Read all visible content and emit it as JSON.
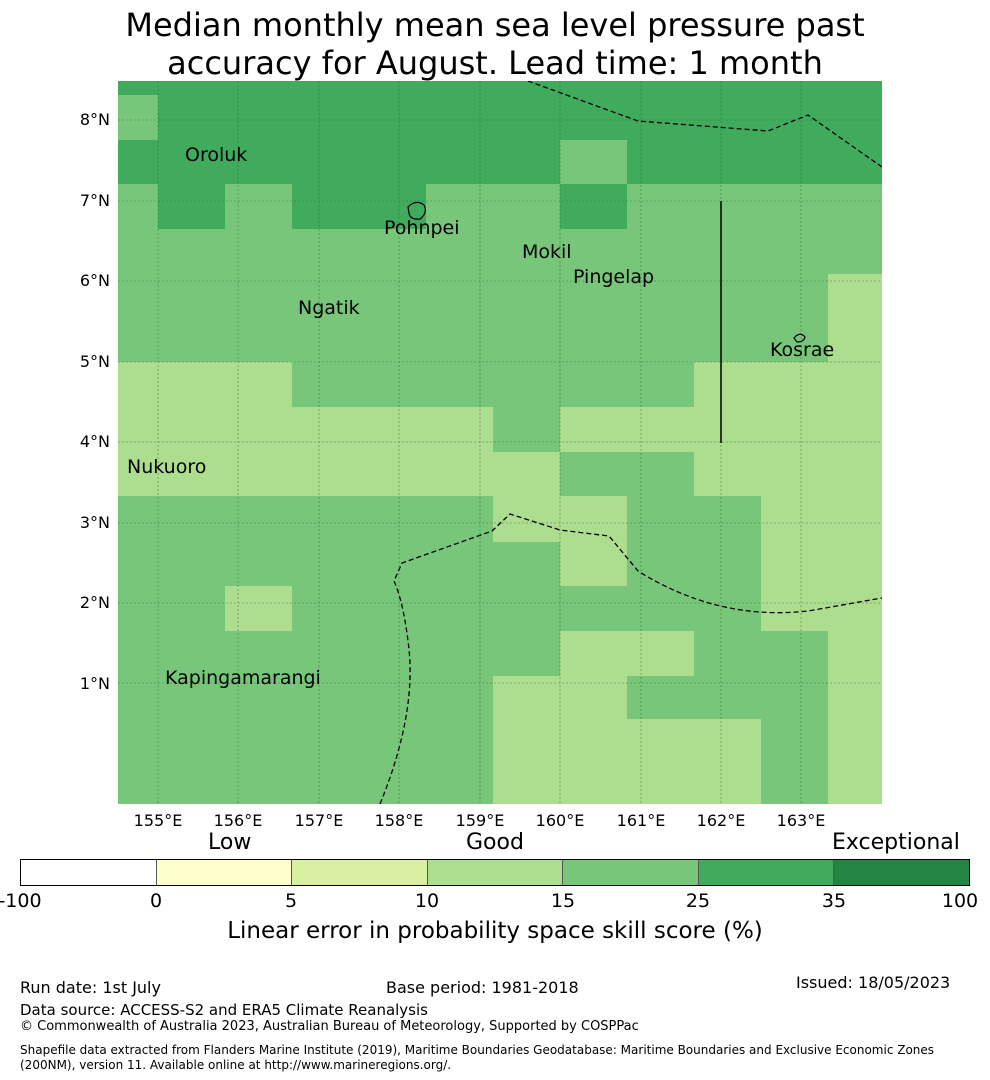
{
  "title_line1": "Median monthly mean sea level pressure past",
  "title_line2": "accuracy for August. Lead time: 1 month",
  "lat_labels": [
    "8°N",
    "7°N",
    "6°N",
    "5°N",
    "4°N",
    "3°N",
    "2°N",
    "1°N"
  ],
  "lon_labels": [
    "155°E",
    "156°E",
    "157°E",
    "158°E",
    "159°E",
    "160°E",
    "161°E",
    "162°E",
    "163°E"
  ],
  "places": [
    "Oroluk",
    "Pohnpei",
    "Mokil",
    "Pingelap",
    "Ngatik",
    "Kosrae",
    "Nukuoro",
    "Kapingamarangi"
  ],
  "colorbar": {
    "categories": [
      "Low",
      "Good",
      "Exceptional"
    ],
    "ticks": [
      "-100",
      "0",
      "5",
      "10",
      "15",
      "25",
      "35",
      "100"
    ],
    "colors": [
      "#ffffff",
      "#ffffcc",
      "#d9f0a3",
      "#addd8e",
      "#78c679",
      "#41ab5d",
      "#238443"
    ],
    "label": "Linear error in probability space skill score (%)"
  },
  "footer": {
    "run_date": "Run date: 1st July",
    "base_period": "Base period: 1981-2018",
    "issued": "Issued: 18/05/2023",
    "data_source": "Data source: ACCESS-S2 and ERA5 Climate Reanalysis",
    "copyright": "© Commonwealth of Australia 2023, Australian Bureau of Meteorology, Supported by COSPPac",
    "shapefile_line1": "Shapefile data extracted from Flanders Marine Institute (2019), Maritime Boundaries Geodatabase: Maritime Boundaries and Exclusive Economic Zones",
    "shapefile_line2": "(200NM), version 11. Available online at http://www.marineregions.org/."
  }
}
